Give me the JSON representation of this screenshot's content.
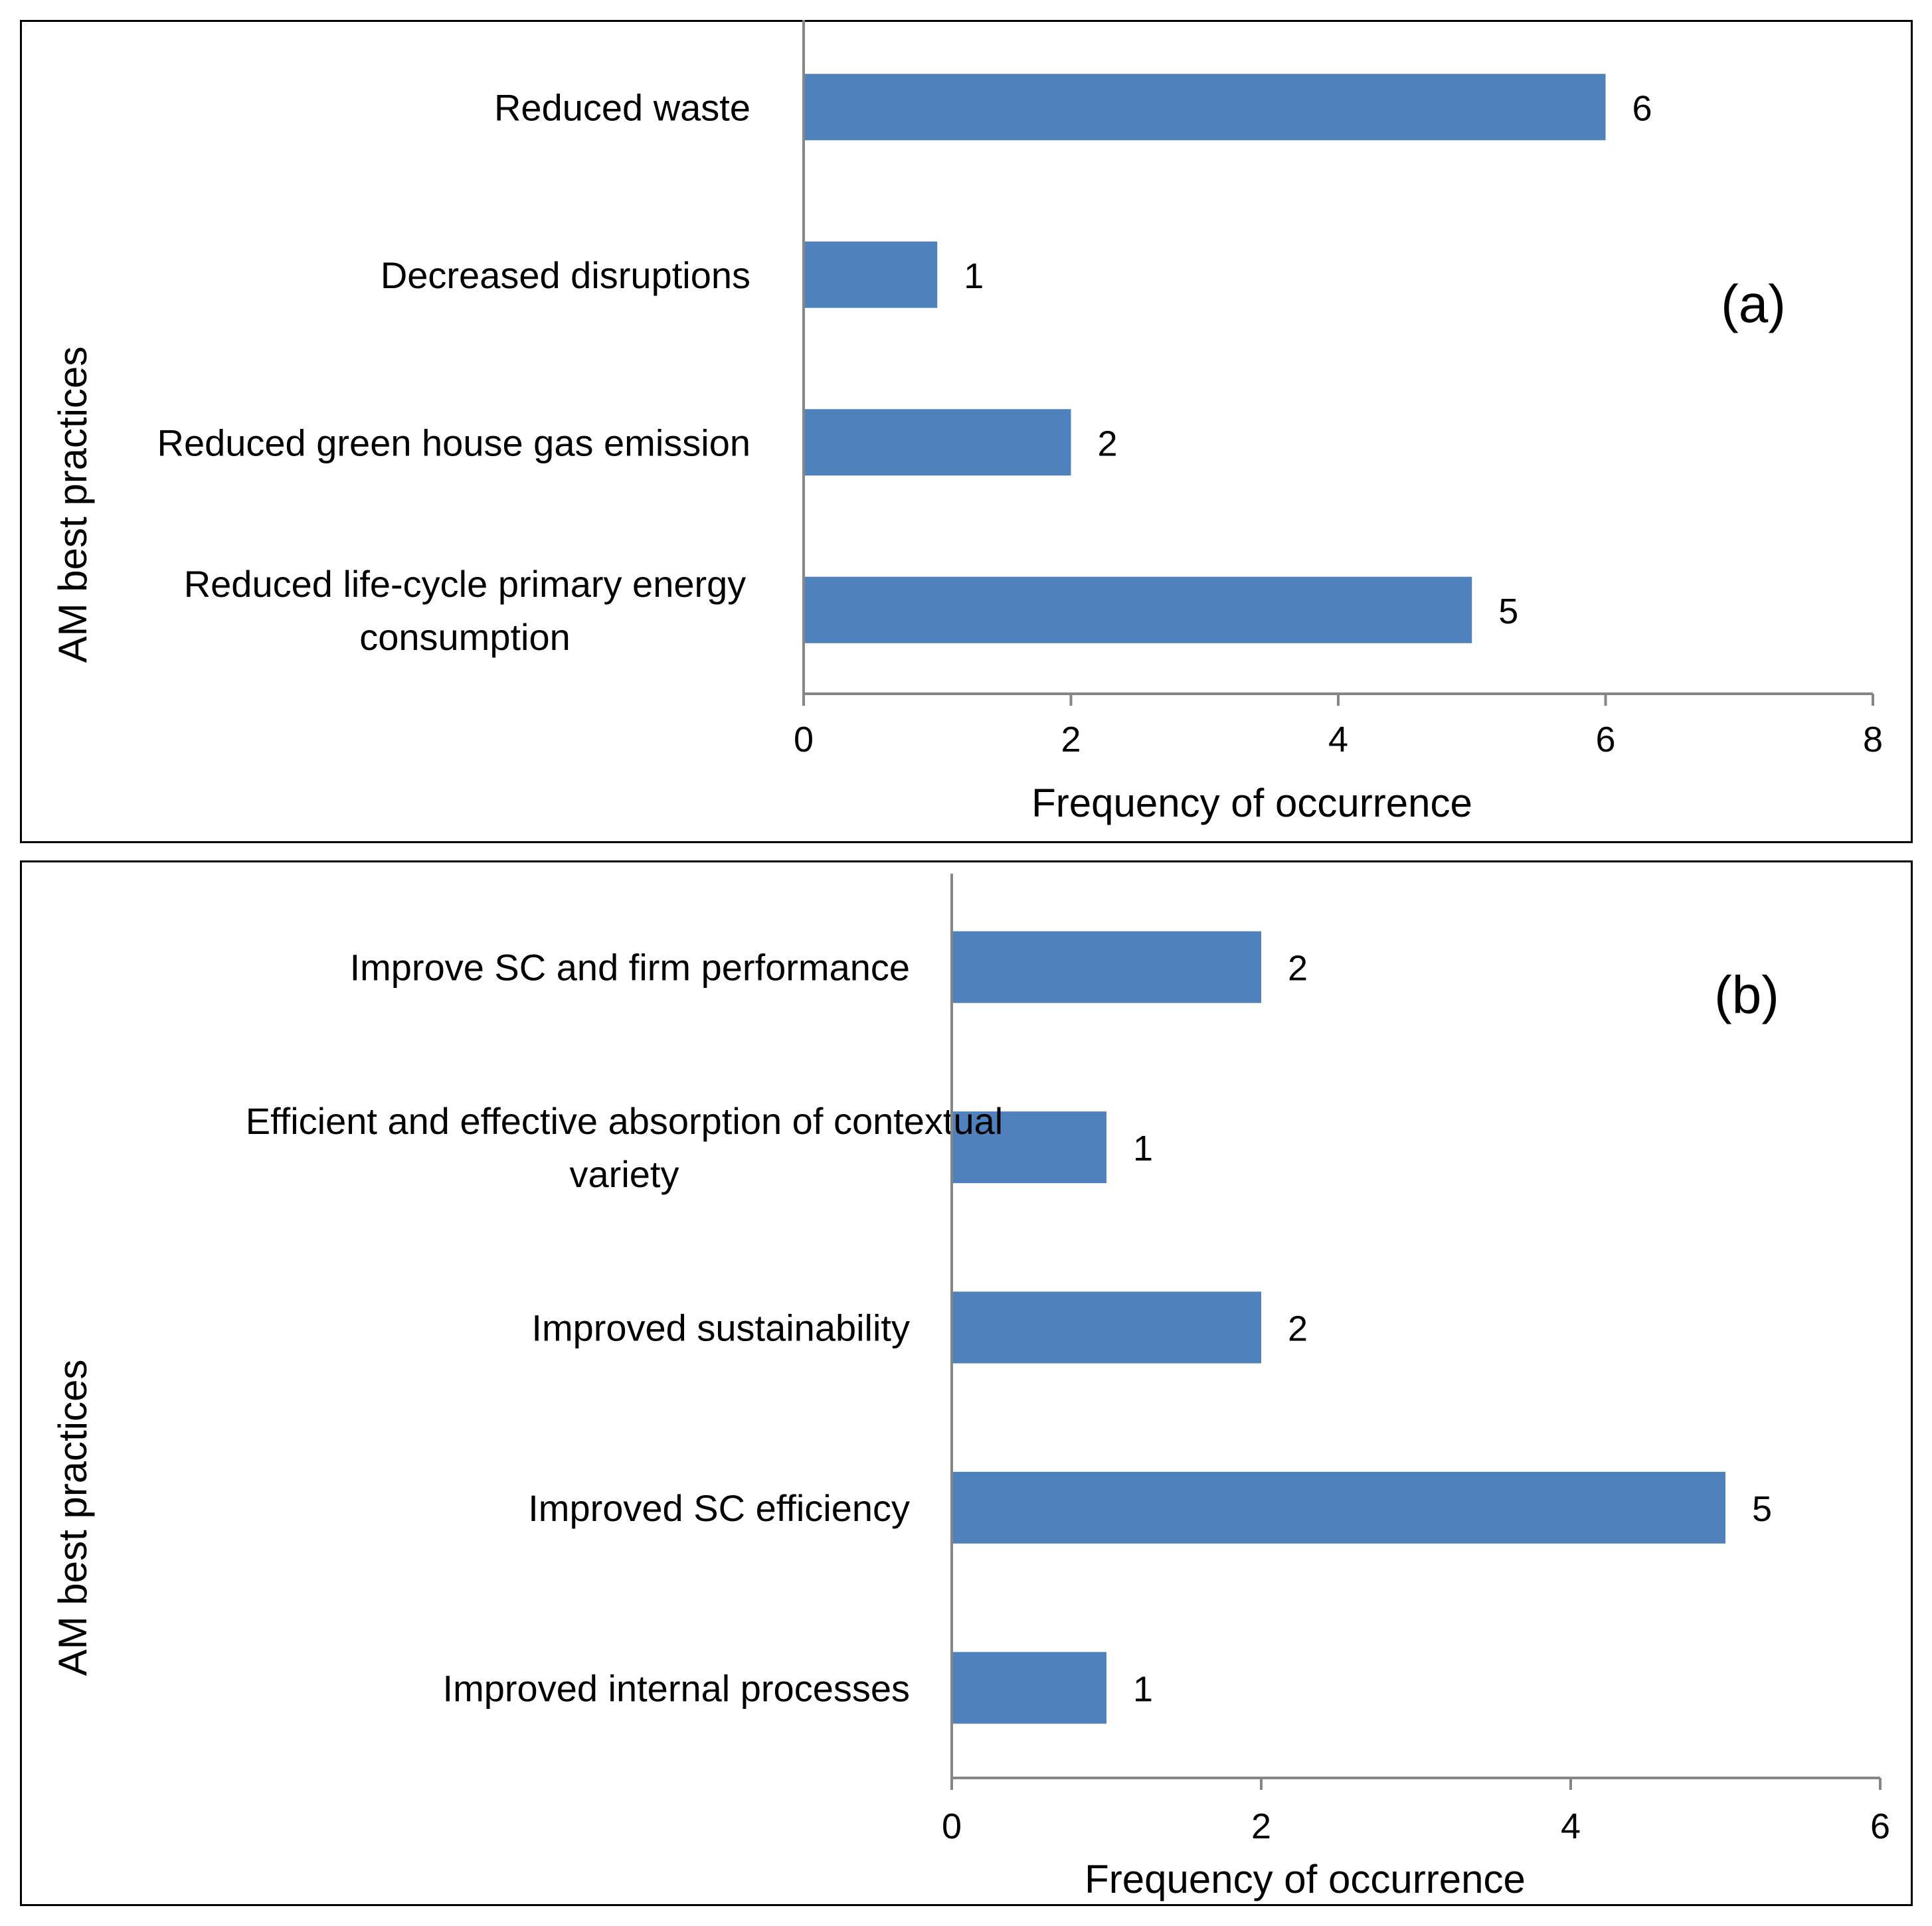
{
  "colors": {
    "bar": "#4f81bd",
    "axis": "#868686",
    "border": "#000000"
  },
  "chart_data": [
    {
      "type": "bar",
      "orientation": "horizontal",
      "panel_label": "(a)",
      "title": "",
      "xlabel": "Frequency of occurrence",
      "ylabel": "AM best practices",
      "categories": [
        [
          "Reduced waste"
        ],
        [
          "Decreased disruptions"
        ],
        [
          "Reduced green house gas emission"
        ],
        [
          "Reduced life-cycle primary energy",
          "consumption"
        ]
      ],
      "values": [
        6,
        1,
        2,
        5
      ],
      "data_labels": [
        "6",
        "1",
        "2",
        "5"
      ],
      "xlim": [
        0,
        8
      ],
      "xticks": [
        "0",
        "2",
        "4",
        "6",
        "8"
      ],
      "grid": false,
      "legend": "none"
    },
    {
      "type": "bar",
      "orientation": "horizontal",
      "panel_label": "(b)",
      "title": "",
      "xlabel": "Frequency of occurrence",
      "ylabel": "AM best practices",
      "categories": [
        [
          "Improve SC and firm performance"
        ],
        [
          "Efficient and effective absorption of contextual",
          "variety"
        ],
        [
          "Improved sustainability"
        ],
        [
          "Improved SC efficiency"
        ],
        [
          "Improved internal processes"
        ]
      ],
      "values": [
        2,
        1,
        2,
        5,
        1
      ],
      "data_labels": [
        "2",
        "1",
        "2",
        "5",
        "1"
      ],
      "xlim": [
        0,
        6
      ],
      "xticks": [
        "0",
        "2",
        "4",
        "6"
      ],
      "grid": false,
      "legend": "none"
    }
  ]
}
